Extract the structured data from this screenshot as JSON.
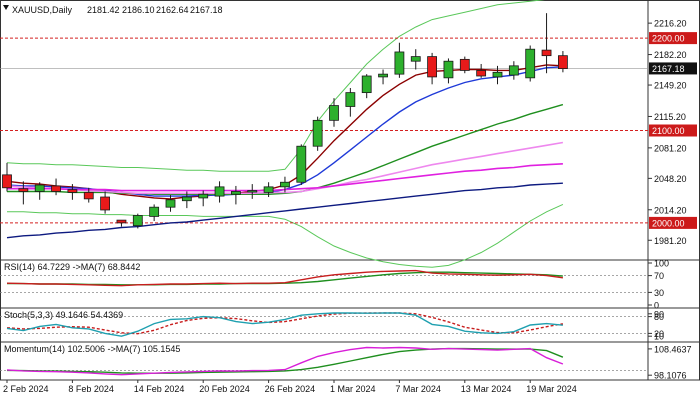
{
  "chart_data": {
    "type": "candlestick",
    "grid": false,
    "header": {
      "symbol": "XAUUSD,Daily",
      "ohlc": [
        "2181.42",
        "2186.10",
        "2162.64",
        "2167.18"
      ]
    },
    "colors": {
      "up": "#2db02d",
      "down": "#e81a1a",
      "candle_border": "#1a1a1a",
      "level_line": "#d42020",
      "level_label_bg": "#cc1a1a",
      "last_label_bg": "#111111",
      "ma_dark_red": "#8b0000",
      "ma_blue": "#1f3ad8",
      "ma_green": "#1f8f1f",
      "ma_light_pink": "#ee88ee",
      "ma_magenta": "#e020e0",
      "ma_navy": "#0d1a80",
      "bollinger": "#5ac85a",
      "rsi": "#c81e1e",
      "rsi_ma": "#1f8f1f",
      "stoch_k": "#1fa0b0",
      "stoch_d": "#c81e1e",
      "momentum": "#d81ed8",
      "momentum_ma": "#1f8f1f"
    },
    "x_labels": [
      {
        "i": 0,
        "label": "2 Feb 2024"
      },
      {
        "i": 4,
        "label": "8 Feb 2024"
      },
      {
        "i": 8,
        "label": "14 Feb 2024"
      },
      {
        "i": 12,
        "label": "20 Feb 2024"
      },
      {
        "i": 16,
        "label": "26 Feb 2024"
      },
      {
        "i": 20,
        "label": "1 Mar 2024"
      },
      {
        "i": 24,
        "label": "7 Mar 2024"
      },
      {
        "i": 28,
        "label": "13 Mar 2024"
      },
      {
        "i": 32,
        "label": "19 Mar 2024"
      }
    ],
    "price": {
      "ylim": [
        1962,
        2238
      ],
      "y_ticks": [
        "2216.20",
        "2182.20",
        "2149.20",
        "2115.20",
        "2081.20",
        "2048.20",
        "2014.20",
        "1981.20"
      ],
      "levels": [
        {
          "value": 2200,
          "label": "2200.00"
        },
        {
          "value": 2100,
          "label": "2100.00"
        },
        {
          "value": 2000,
          "label": "2000.00"
        }
      ],
      "last_price": {
        "value": 2167.18,
        "label": "2167.18"
      },
      "candles": [
        {
          "o": 2052,
          "h": 2065,
          "l": 2034,
          "c": 2038
        },
        {
          "o": 2037,
          "h": 2045,
          "l": 2020,
          "c": 2034
        },
        {
          "o": 2034,
          "h": 2044,
          "l": 2025,
          "c": 2041
        },
        {
          "o": 2040,
          "h": 2048,
          "l": 2030,
          "c": 2034
        },
        {
          "o": 2036,
          "h": 2042,
          "l": 2025,
          "c": 2033
        },
        {
          "o": 2033,
          "h": 2038,
          "l": 2022,
          "c": 2026
        },
        {
          "o": 2028,
          "h": 2034,
          "l": 2010,
          "c": 2014
        },
        {
          "o": 2003,
          "h": 2002,
          "l": 1996,
          "c": 2000
        },
        {
          "o": 1997,
          "h": 2010,
          "l": 1994,
          "c": 2008
        },
        {
          "o": 2007,
          "h": 2020,
          "l": 2002,
          "c": 2017
        },
        {
          "o": 2017,
          "h": 2030,
          "l": 2012,
          "c": 2025
        },
        {
          "o": 2024,
          "h": 2034,
          "l": 2016,
          "c": 2028
        },
        {
          "o": 2027,
          "h": 2035,
          "l": 2018,
          "c": 2031
        },
        {
          "o": 2029,
          "h": 2045,
          "l": 2022,
          "c": 2039
        },
        {
          "o": 2031,
          "h": 2040,
          "l": 2020,
          "c": 2034
        },
        {
          "o": 2034,
          "h": 2042,
          "l": 2026,
          "c": 2035
        },
        {
          "o": 2033,
          "h": 2044,
          "l": 2028,
          "c": 2039
        },
        {
          "o": 2039,
          "h": 2050,
          "l": 2033,
          "c": 2044
        },
        {
          "o": 2044,
          "h": 2085,
          "l": 2041,
          "c": 2083
        },
        {
          "o": 2083,
          "h": 2115,
          "l": 2078,
          "c": 2111
        },
        {
          "o": 2111,
          "h": 2135,
          "l": 2104,
          "c": 2127
        },
        {
          "o": 2126,
          "h": 2146,
          "l": 2115,
          "c": 2141
        },
        {
          "o": 2141,
          "h": 2161,
          "l": 2135,
          "c": 2159
        },
        {
          "o": 2158,
          "h": 2166,
          "l": 2150,
          "c": 2161
        },
        {
          "o": 2161,
          "h": 2195,
          "l": 2157,
          "c": 2185
        },
        {
          "o": 2175,
          "h": 2188,
          "l": 2166,
          "c": 2180
        },
        {
          "o": 2180,
          "h": 2184,
          "l": 2150,
          "c": 2158
        },
        {
          "o": 2157,
          "h": 2178,
          "l": 2151,
          "c": 2175
        },
        {
          "o": 2177,
          "h": 2180,
          "l": 2162,
          "c": 2165
        },
        {
          "o": 2165,
          "h": 2172,
          "l": 2157,
          "c": 2159
        },
        {
          "o": 2158,
          "h": 2170,
          "l": 2150,
          "c": 2163
        },
        {
          "o": 2160,
          "h": 2175,
          "l": 2155,
          "c": 2170
        },
        {
          "o": 2157,
          "h": 2192,
          "l": 2153,
          "c": 2188
        },
        {
          "o": 2187,
          "h": 2227,
          "l": 2162,
          "c": 2181
        },
        {
          "o": 2181,
          "h": 2186,
          "l": 2163,
          "c": 2167
        }
      ],
      "moving_averages": [
        {
          "key": "ma_dark_red",
          "values": [
            2045,
            2043,
            2042,
            2040,
            2039,
            2037,
            2034,
            2031,
            2029,
            2027,
            2026,
            2028,
            2029,
            2031,
            2032,
            2034,
            2036,
            2041,
            2052,
            2070,
            2089,
            2106,
            2123,
            2138,
            2150,
            2160,
            2164,
            2165,
            2166,
            2166,
            2165,
            2165,
            2168,
            2171,
            2170
          ]
        },
        {
          "key": "ma_blue",
          "values": [
            2041,
            2040,
            2040,
            2039,
            2038,
            2037,
            2035,
            2033,
            2031,
            2029,
            2029,
            2029,
            2030,
            2030,
            2031,
            2032,
            2033,
            2036,
            2042,
            2052,
            2065,
            2079,
            2093,
            2107,
            2120,
            2131,
            2139,
            2146,
            2152,
            2156,
            2158,
            2160,
            2164,
            2168,
            2169
          ]
        },
        {
          "key": "ma_green",
          "values": [
            2034,
            2034,
            2034,
            2034,
            2033,
            2033,
            2033,
            2032,
            2032,
            2031,
            2031,
            2031,
            2031,
            2031,
            2031,
            2031,
            2031,
            2032,
            2034,
            2038,
            2043,
            2049,
            2055,
            2062,
            2069,
            2076,
            2083,
            2089,
            2095,
            2101,
            2107,
            2112,
            2118,
            2123,
            2128
          ]
        },
        {
          "key": "ma_light_pink",
          "values": [
            2040,
            2039,
            2038,
            2037,
            2036,
            2035,
            2034,
            2033,
            2032,
            2032,
            2032,
            2032,
            2032,
            2032,
            2032,
            2032,
            2033,
            2033,
            2034,
            2037,
            2040,
            2044,
            2047,
            2051,
            2055,
            2059,
            2063,
            2066,
            2069,
            2072,
            2075,
            2078,
            2081,
            2084,
            2087
          ]
        },
        {
          "key": "ma_magenta",
          "values": [
            2037,
            2037,
            2037,
            2037,
            2036,
            2036,
            2036,
            2035,
            2035,
            2035,
            2035,
            2035,
            2035,
            2035,
            2035,
            2035,
            2035,
            2036,
            2037,
            2038,
            2040,
            2042,
            2044,
            2046,
            2048,
            2050,
            2052,
            2054,
            2056,
            2057,
            2059,
            2060,
            2062,
            2063,
            2064
          ]
        },
        {
          "key": "ma_navy",
          "values": [
            1984,
            1986,
            1987,
            1989,
            1990,
            1992,
            1993,
            1995,
            1996,
            1998,
            2000,
            2001,
            2003,
            2005,
            2007,
            2009,
            2011,
            2013,
            2015,
            2017,
            2019,
            2021,
            2023,
            2025,
            2027,
            2029,
            2031,
            2033,
            2035,
            2036,
            2038,
            2039,
            2041,
            2042,
            2043
          ]
        }
      ],
      "bollinger_upper": [
        2065,
        2064,
        2064,
        2063,
        2063,
        2062,
        2061,
        2060,
        2060,
        2059,
        2058,
        2057,
        2057,
        2056,
        2056,
        2056,
        2056,
        2058,
        2080,
        2110,
        2132,
        2152,
        2172,
        2188,
        2202,
        2212,
        2220,
        2224,
        2228,
        2232,
        2236,
        2238,
        2240,
        2242,
        2242
      ],
      "bollinger_lower": [
        2012,
        2012,
        2011,
        2011,
        2010,
        2010,
        2009,
        2009,
        2008,
        2008,
        2008,
        2008,
        2007,
        2007,
        2007,
        2007,
        2007,
        2004,
        1996,
        1985,
        1975,
        1968,
        1962,
        1958,
        1955,
        1953,
        1952,
        1954,
        1960,
        1968,
        1978,
        1990,
        2002,
        2012,
        2020
      ]
    },
    "rsi": {
      "label": "RSI(14) 64.7229 ->MA(7) 68.8442",
      "ylim": [
        0,
        100
      ],
      "y_ticks": [
        "100",
        "70",
        "30",
        "0"
      ],
      "levels": [
        70,
        30
      ],
      "values": [
        52,
        51,
        50,
        50,
        49,
        48,
        47,
        46,
        48,
        49,
        50,
        50,
        51,
        52,
        51,
        52,
        52,
        53,
        60,
        67,
        72,
        75,
        78,
        80,
        81,
        82,
        76,
        74,
        73,
        72,
        71,
        72,
        73,
        70,
        64.7
      ],
      "ma_values": [
        51,
        51,
        50,
        50,
        50,
        49,
        49,
        48,
        48,
        48,
        49,
        49,
        50,
        50,
        51,
        51,
        51,
        52,
        53,
        56,
        60,
        64,
        68,
        72,
        75,
        77,
        78,
        78,
        77,
        76,
        75,
        74,
        73,
        72,
        68.8
      ]
    },
    "stochastic": {
      "label": "Stoch(5,3,3) 49.1646 54.4369",
      "ylim": [
        0,
        100
      ],
      "y_ticks": [
        "90",
        "80",
        "20",
        "10"
      ],
      "levels": [
        80,
        20
      ],
      "k_values": [
        38,
        30,
        45,
        52,
        40,
        36,
        20,
        10,
        28,
        55,
        70,
        72,
        80,
        76,
        62,
        55,
        60,
        70,
        85,
        90,
        93,
        93,
        92,
        93,
        93,
        85,
        52,
        45,
        28,
        22,
        20,
        26,
        50,
        55,
        49.2
      ],
      "d_values": [
        40,
        36,
        38,
        42,
        44,
        42,
        32,
        22,
        19,
        31,
        51,
        66,
        74,
        76,
        73,
        65,
        59,
        62,
        72,
        82,
        89,
        92,
        93,
        93,
        93,
        90,
        77,
        61,
        42,
        32,
        23,
        22,
        32,
        44,
        54.4
      ]
    },
    "momentum": {
      "label": "Momentum(14) 102.5006 ->MA(7) 105.1545",
      "ylim": [
        97,
        110
      ],
      "y_ticks": [
        "108.4637",
        "98.1076"
      ],
      "levels": [
        100
      ],
      "values": [
        100.2,
        99.8,
        99.6,
        99.5,
        99.3,
        99.0,
        98.6,
        98.3,
        98.6,
        98.9,
        99.2,
        99.4,
        99.6,
        99.8,
        99.7,
        99.9,
        100.0,
        100.3,
        103.0,
        105.5,
        107.0,
        108.2,
        109.0,
        108.8,
        109.0,
        108.8,
        108.3,
        108.6,
        108.4,
        108.2,
        108.0,
        108.3,
        108.6,
        105.0,
        102.5
      ],
      "ma_values": [
        100.0,
        99.9,
        99.8,
        99.7,
        99.6,
        99.5,
        99.3,
        99.0,
        98.9,
        98.9,
        98.9,
        99.0,
        99.2,
        99.3,
        99.4,
        99.5,
        99.6,
        99.8,
        100.3,
        101.2,
        102.4,
        103.7,
        105.0,
        106.3,
        107.4,
        108.0,
        108.4,
        108.6,
        108.6,
        108.5,
        108.4,
        108.4,
        108.4,
        107.8,
        105.2
      ]
    }
  }
}
